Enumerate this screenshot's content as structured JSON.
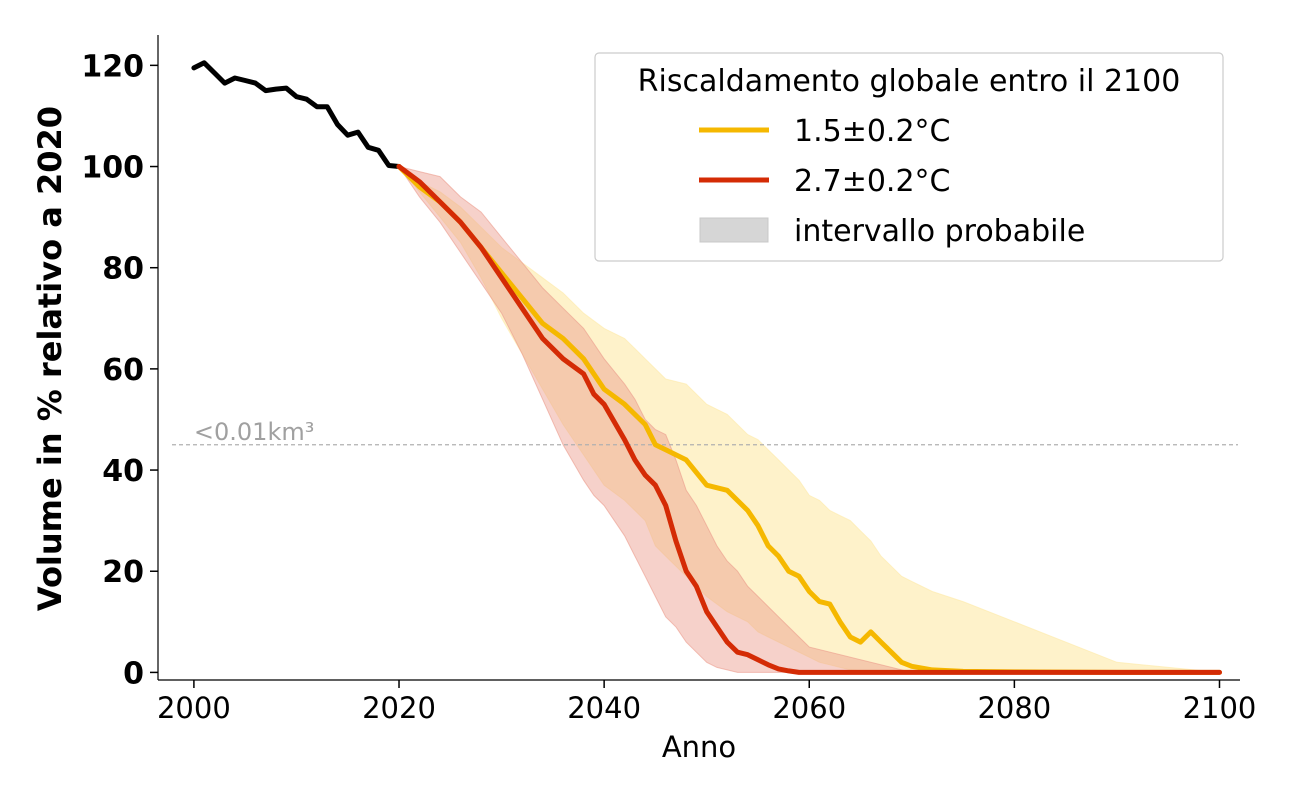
{
  "chart_data": {
    "type": "line",
    "title": "",
    "xlabel": "Anno",
    "ylabel": "Volume in % relativo a 2020",
    "xlim": [
      1996.5,
      2102
    ],
    "ylim": [
      -1.5,
      126
    ],
    "xticks": [
      2000,
      2020,
      2040,
      2060,
      2080,
      2100
    ],
    "yticks": [
      0,
      20,
      40,
      60,
      80,
      100,
      120
    ],
    "grid": false,
    "legend": {
      "title": "Riscaldamento globale entro il 2100",
      "placement": "top-right",
      "entries": [
        {
          "label": "1.5±0.2°C",
          "kind": "line",
          "color": "#f5b800"
        },
        {
          "label": "2.7±0.2°C",
          "kind": "line",
          "color": "#d42b05"
        },
        {
          "label": "intervallo probabile",
          "kind": "patch",
          "color": "#d6d6d6"
        }
      ]
    },
    "threshold": {
      "y": 45,
      "label": "<0.01km³",
      "color": "#b0b0b0"
    },
    "historical": {
      "color": "#000000",
      "x": [
        2000,
        2001,
        2002,
        2003,
        2004,
        2005,
        2006,
        2007,
        2008,
        2009,
        2010,
        2011,
        2012,
        2013,
        2014,
        2015,
        2016,
        2017,
        2018,
        2019,
        2020
      ],
      "y": [
        119.5,
        120.5,
        118.5,
        116.5,
        117.5,
        117,
        116.5,
        115,
        115.3,
        115.5,
        113.8,
        113.3,
        111.8,
        111.8,
        108.3,
        106.2,
        106.8,
        103.8,
        103.2,
        100.2,
        100
      ]
    },
    "series": [
      {
        "name": "1.5±0.2°C",
        "color": "#f5b800",
        "band_color": "#fde9a6",
        "x": [
          2020,
          2022,
          2024,
          2026,
          2028,
          2030,
          2032,
          2034,
          2036,
          2038,
          2040,
          2042,
          2044,
          2045,
          2046,
          2048,
          2050,
          2052,
          2054,
          2055,
          2056,
          2057,
          2058,
          2059,
          2060,
          2061,
          2062,
          2063,
          2064,
          2065,
          2066,
          2067,
          2068,
          2069,
          2070,
          2072,
          2075,
          2080,
          2090,
          2100
        ],
        "y": [
          100,
          96,
          93,
          89,
          84,
          79,
          74,
          69,
          66,
          62,
          56,
          53,
          49,
          45,
          44,
          42,
          37,
          36,
          32,
          29,
          25,
          23,
          20,
          19,
          16,
          14,
          13.5,
          10,
          7,
          6,
          8,
          6,
          4,
          2,
          1.2,
          0.5,
          0.2,
          0.1,
          0,
          0
        ],
        "band_lower": [
          100,
          95,
          90,
          85,
          78,
          70,
          63,
          56,
          49,
          43,
          37,
          34,
          30,
          25,
          23,
          19,
          15,
          12,
          10,
          8,
          7,
          6,
          5,
          4,
          3,
          2,
          1.5,
          1,
          0.5,
          0.3,
          0,
          0,
          0,
          0,
          0,
          0,
          0,
          0,
          0,
          0
        ],
        "band_upper": [
          100,
          97,
          95,
          92,
          88,
          84,
          81,
          78,
          75,
          71,
          68,
          66,
          62,
          60,
          58,
          57,
          53,
          51,
          47,
          46,
          44,
          42,
          40,
          38,
          35,
          34,
          32,
          31,
          30,
          28,
          26,
          23,
          21,
          19,
          18,
          16,
          14,
          10,
          2,
          0
        ]
      },
      {
        "name": "2.7±0.2°C",
        "color": "#d42b05",
        "band_color": "#eb9a8a",
        "x": [
          2020,
          2022,
          2024,
          2026,
          2028,
          2030,
          2032,
          2034,
          2036,
          2038,
          2039,
          2040,
          2042,
          2043,
          2044,
          2045,
          2046,
          2047,
          2048,
          2049,
          2050,
          2051,
          2052,
          2053,
          2054,
          2055,
          2056,
          2057,
          2058,
          2059,
          2060,
          2070,
          2100
        ],
        "y": [
          100,
          97,
          93,
          89,
          84,
          78,
          72,
          66,
          62,
          59,
          55,
          53,
          46,
          42,
          39,
          37,
          33,
          26,
          20,
          17,
          12,
          9,
          6,
          4,
          3.5,
          2.5,
          1.5,
          0.7,
          0.3,
          0,
          0,
          0,
          0
        ],
        "band_lower": [
          100,
          94,
          89,
          83,
          77,
          71,
          63,
          54,
          45,
          38,
          35,
          33,
          27,
          23,
          19,
          15,
          11,
          9,
          6,
          4,
          2,
          1,
          0.5,
          0,
          0,
          0,
          0,
          0,
          0,
          0,
          0,
          0,
          0
        ],
        "band_upper": [
          100,
          99,
          98,
          94,
          91,
          86,
          81,
          76,
          72,
          68,
          65,
          62,
          57,
          54,
          50,
          48,
          47,
          42,
          36,
          33,
          29,
          25,
          22,
          20,
          17,
          15,
          13,
          11,
          9,
          7,
          5,
          0,
          0
        ]
      }
    ]
  }
}
